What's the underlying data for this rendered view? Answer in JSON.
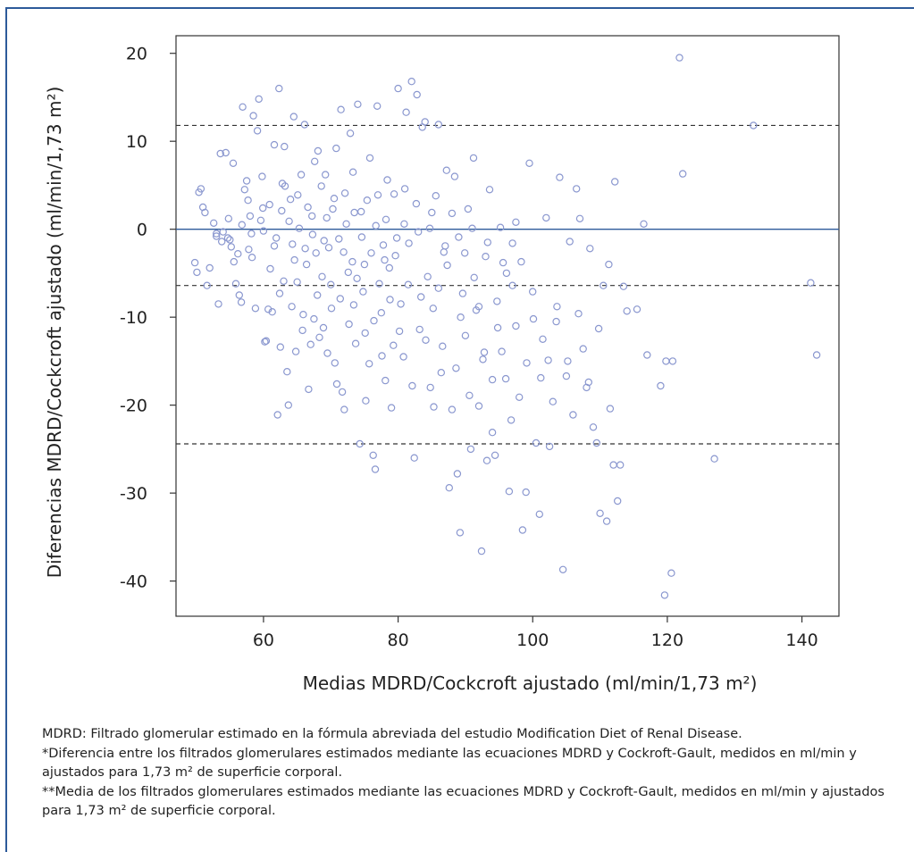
{
  "chart_data": {
    "type": "scatter",
    "title": "",
    "xlabel": "Medias MDRD/Cockcroft ajustado (ml/min/1,73 m²)",
    "ylabel": "Diferencias MDRD/Cockcroft ajustado (ml/min/1,73 m²)",
    "xlim": [
      47,
      145.5
    ],
    "ylim": [
      -44,
      22
    ],
    "xticks": [
      60,
      80,
      100,
      120,
      140
    ],
    "yticks": [
      20,
      10,
      0,
      -10,
      -20,
      -30,
      -40
    ],
    "xtick_labels": [
      "60",
      "80",
      "100",
      "120",
      "140"
    ],
    "ytick_labels": [
      "20",
      "10",
      "0",
      "-10",
      "-20",
      "-30",
      "-40"
    ],
    "reference_lines": [
      {
        "y": 0,
        "style": "solid",
        "color": "#2d5a9a"
      },
      {
        "y": 11.8,
        "style": "dashed",
        "color": "#333333"
      },
      {
        "y": -6.4,
        "style": "dashed",
        "color": "#333333"
      },
      {
        "y": -24.4,
        "style": "dashed",
        "color": "#333333"
      }
    ],
    "marker_color": "#8a97cf",
    "series": [
      {
        "points": [
          [
            49.8,
            -3.8
          ],
          [
            50.1,
            -4.9
          ],
          [
            50.4,
            4.2
          ],
          [
            50.7,
            4.6
          ],
          [
            51.0,
            2.5
          ],
          [
            51.3,
            1.9
          ],
          [
            51.6,
            -6.4
          ],
          [
            52.0,
            -4.4
          ],
          [
            52.6,
            0.7
          ],
          [
            53.0,
            -0.8
          ],
          [
            53.3,
            -8.5
          ],
          [
            53.6,
            8.6
          ],
          [
            53.8,
            -1.4
          ],
          [
            54.0,
            -0.3
          ],
          [
            54.4,
            8.7
          ],
          [
            54.7,
            -1.0
          ],
          [
            55.0,
            -1.2
          ],
          [
            55.2,
            -2.0
          ],
          [
            55.6,
            -3.7
          ],
          [
            55.9,
            -6.2
          ],
          [
            56.2,
            -2.8
          ],
          [
            56.4,
            -7.5
          ],
          [
            56.7,
            -8.3
          ],
          [
            56.9,
            13.9
          ],
          [
            57.2,
            4.5
          ],
          [
            57.5,
            5.5
          ],
          [
            57.7,
            3.3
          ],
          [
            58.0,
            1.5
          ],
          [
            58.2,
            -0.5
          ],
          [
            58.5,
            12.9
          ],
          [
            58.8,
            -9.0
          ],
          [
            59.1,
            11.2
          ],
          [
            59.3,
            14.8
          ],
          [
            59.6,
            1.0
          ],
          [
            59.9,
            2.4
          ],
          [
            60.2,
            -12.8
          ],
          [
            60.4,
            -12.7
          ],
          [
            60.7,
            -9.1
          ],
          [
            61.0,
            -4.5
          ],
          [
            61.3,
            -9.4
          ],
          [
            61.6,
            9.6
          ],
          [
            61.9,
            -1.0
          ],
          [
            62.1,
            -21.1
          ],
          [
            62.3,
            16.0
          ],
          [
            62.5,
            -13.4
          ],
          [
            62.7,
            2.1
          ],
          [
            63.0,
            -5.9
          ],
          [
            63.2,
            4.9
          ],
          [
            63.5,
            -16.2
          ],
          [
            63.7,
            -20.0
          ],
          [
            64.0,
            3.4
          ],
          [
            64.2,
            -8.8
          ],
          [
            64.5,
            12.8
          ],
          [
            64.8,
            -13.9
          ],
          [
            65.0,
            -6.0
          ],
          [
            65.3,
            0.1
          ],
          [
            65.6,
            6.2
          ],
          [
            65.9,
            -9.7
          ],
          [
            66.1,
            11.9
          ],
          [
            66.4,
            -4.0
          ],
          [
            66.7,
            -18.2
          ],
          [
            67.0,
            -13.1
          ],
          [
            67.2,
            1.5
          ],
          [
            67.5,
            -10.2
          ],
          [
            67.8,
            -2.7
          ],
          [
            68.0,
            -7.5
          ],
          [
            68.3,
            -12.3
          ],
          [
            68.6,
            4.9
          ],
          [
            68.9,
            -11.2
          ],
          [
            69.2,
            6.2
          ],
          [
            69.5,
            -14.1
          ],
          [
            69.7,
            -2.1
          ],
          [
            70.0,
            -6.3
          ],
          [
            70.3,
            2.3
          ],
          [
            70.6,
            -15.2
          ],
          [
            70.9,
            -17.6
          ],
          [
            71.2,
            -1.1
          ],
          [
            71.5,
            13.6
          ],
          [
            71.7,
            -18.5
          ],
          [
            72.0,
            -20.5
          ],
          [
            72.3,
            0.6
          ],
          [
            72.6,
            -4.9
          ],
          [
            72.9,
            10.9
          ],
          [
            73.2,
            -3.7
          ],
          [
            73.4,
            -8.6
          ],
          [
            73.7,
            -13.0
          ],
          [
            74.0,
            14.2
          ],
          [
            74.3,
            -24.4
          ],
          [
            74.6,
            -0.9
          ],
          [
            74.8,
            -7.1
          ],
          [
            75.1,
            -11.8
          ],
          [
            75.4,
            3.3
          ],
          [
            75.7,
            -15.3
          ],
          [
            76.0,
            -2.7
          ],
          [
            76.3,
            -25.7
          ],
          [
            76.6,
            -27.3
          ],
          [
            76.9,
            14.0
          ],
          [
            77.2,
            -6.2
          ],
          [
            77.5,
            -9.5
          ],
          [
            77.8,
            -1.8
          ],
          [
            78.1,
            -17.2
          ],
          [
            78.4,
            5.6
          ],
          [
            78.7,
            -4.4
          ],
          [
            79.0,
            -20.3
          ],
          [
            79.3,
            -13.2
          ],
          [
            79.6,
            -3.0
          ],
          [
            80.0,
            16.0
          ],
          [
            80.4,
            -8.5
          ],
          [
            80.8,
            -14.5
          ],
          [
            81.2,
            13.3
          ],
          [
            81.6,
            -1.6
          ],
          [
            82.0,
            16.8
          ],
          [
            82.4,
            -26.0
          ],
          [
            82.8,
            15.3
          ],
          [
            83.2,
            -11.4
          ],
          [
            83.6,
            11.6
          ],
          [
            84.0,
            12.2
          ],
          [
            84.4,
            -5.4
          ],
          [
            84.8,
            -18.0
          ],
          [
            85.2,
            -9.0
          ],
          [
            85.6,
            3.8
          ],
          [
            86.0,
            11.9
          ],
          [
            86.4,
            -16.3
          ],
          [
            86.8,
            -2.6
          ],
          [
            87.2,
            6.7
          ],
          [
            87.6,
            -29.4
          ],
          [
            88.0,
            -20.5
          ],
          [
            88.4,
            6.0
          ],
          [
            88.8,
            -27.8
          ],
          [
            89.2,
            -34.5
          ],
          [
            89.6,
            -7.3
          ],
          [
            90.0,
            -12.1
          ],
          [
            90.4,
            2.3
          ],
          [
            90.8,
            -25.0
          ],
          [
            91.2,
            8.1
          ],
          [
            91.6,
            -9.2
          ],
          [
            92.0,
            -20.1
          ],
          [
            92.4,
            -36.6
          ],
          [
            92.8,
            -14.0
          ],
          [
            93.2,
            -26.3
          ],
          [
            93.6,
            4.5
          ],
          [
            94.0,
            -17.1
          ],
          [
            94.4,
            -25.7
          ],
          [
            94.8,
            -11.2
          ],
          [
            95.2,
            0.2
          ],
          [
            95.6,
            -3.8
          ],
          [
            96.0,
            -17.0
          ],
          [
            96.5,
            -29.8
          ],
          [
            97.0,
            -6.4
          ],
          [
            97.5,
            0.8
          ],
          [
            98.0,
            -19.1
          ],
          [
            98.5,
            -34.2
          ],
          [
            99.0,
            -29.9
          ],
          [
            99.5,
            7.5
          ],
          [
            100.0,
            -7.1
          ],
          [
            100.5,
            -24.3
          ],
          [
            101.0,
            -32.4
          ],
          [
            101.5,
            -12.5
          ],
          [
            102.0,
            1.3
          ],
          [
            102.5,
            -24.7
          ],
          [
            103.0,
            -19.6
          ],
          [
            103.5,
            -10.5
          ],
          [
            104.0,
            5.9
          ],
          [
            104.5,
            -38.7
          ],
          [
            105.0,
            -16.7
          ],
          [
            105.5,
            -1.4
          ],
          [
            106.0,
            -21.1
          ],
          [
            106.5,
            4.6
          ],
          [
            107.0,
            1.2
          ],
          [
            107.5,
            -13.6
          ],
          [
            108.0,
            -18.0
          ],
          [
            108.5,
            -2.2
          ],
          [
            109.0,
            -22.5
          ],
          [
            109.5,
            -24.3
          ],
          [
            110.0,
            -32.3
          ],
          [
            110.5,
            -6.4
          ],
          [
            111.0,
            -33.2
          ],
          [
            111.5,
            -20.4
          ],
          [
            112.0,
            -26.8
          ],
          [
            112.2,
            5.4
          ],
          [
            112.6,
            -30.9
          ],
          [
            113.0,
            -26.8
          ],
          [
            113.5,
            -6.5
          ],
          [
            114.0,
            -9.3
          ],
          [
            115.5,
            -9.1
          ],
          [
            116.5,
            0.6
          ],
          [
            119.0,
            -17.8
          ],
          [
            119.6,
            -41.6
          ],
          [
            119.8,
            -15.0
          ],
          [
            120.6,
            -39.1
          ],
          [
            120.8,
            -15.0
          ],
          [
            121.8,
            19.5
          ],
          [
            122.3,
            6.3
          ],
          [
            127.0,
            -26.1
          ],
          [
            132.8,
            11.8
          ],
          [
            141.3,
            -6.1
          ],
          [
            142.2,
            -14.3
          ],
          [
            55.5,
            7.5
          ],
          [
            56.8,
            0.5
          ],
          [
            58.3,
            -3.2
          ],
          [
            59.8,
            6.0
          ],
          [
            60.9,
            2.8
          ],
          [
            61.6,
            -1.9
          ],
          [
            62.4,
            -7.3
          ],
          [
            63.1,
            9.4
          ],
          [
            63.8,
            0.9
          ],
          [
            64.6,
            -3.5
          ],
          [
            65.1,
            3.9
          ],
          [
            65.8,
            -11.5
          ],
          [
            66.6,
            2.5
          ],
          [
            67.3,
            -0.6
          ],
          [
            68.1,
            8.9
          ],
          [
            68.7,
            -5.4
          ],
          [
            69.4,
            1.3
          ],
          [
            70.1,
            -9.0
          ],
          [
            70.8,
            9.2
          ],
          [
            71.4,
            -7.9
          ],
          [
            72.1,
            4.1
          ],
          [
            72.7,
            -10.8
          ],
          [
            73.3,
            6.5
          ],
          [
            73.9,
            -5.6
          ],
          [
            74.5,
            2.0
          ],
          [
            75.2,
            -19.5
          ],
          [
            75.8,
            8.1
          ],
          [
            76.4,
            -10.4
          ],
          [
            77.0,
            3.9
          ],
          [
            77.6,
            -14.4
          ],
          [
            78.2,
            1.1
          ],
          [
            78.8,
            -8.0
          ],
          [
            79.4,
            4.0
          ],
          [
            80.2,
            -11.6
          ],
          [
            80.9,
            0.6
          ],
          [
            81.5,
            -6.3
          ],
          [
            82.1,
            -17.8
          ],
          [
            82.7,
            2.9
          ],
          [
            83.4,
            -7.7
          ],
          [
            84.1,
            -12.6
          ],
          [
            84.7,
            0.1
          ],
          [
            85.3,
            -20.2
          ],
          [
            86.0,
            -6.7
          ],
          [
            86.6,
            -13.3
          ],
          [
            87.3,
            -4.1
          ],
          [
            88.0,
            1.8
          ],
          [
            88.6,
            -15.8
          ],
          [
            89.3,
            -10.0
          ],
          [
            89.9,
            -2.7
          ],
          [
            90.6,
            -18.9
          ],
          [
            91.3,
            -5.5
          ],
          [
            92.0,
            -8.8
          ],
          [
            92.6,
            -14.8
          ],
          [
            93.3,
            -1.5
          ],
          [
            94.0,
            -23.1
          ],
          [
            94.7,
            -8.2
          ],
          [
            95.4,
            -13.9
          ],
          [
            96.1,
            -5.0
          ],
          [
            96.8,
            -21.7
          ],
          [
            97.5,
            -11.0
          ],
          [
            98.3,
            -3.7
          ],
          [
            99.1,
            -15.2
          ],
          [
            100.1,
            -10.2
          ],
          [
            101.2,
            -16.9
          ],
          [
            102.3,
            -14.9
          ],
          [
            103.6,
            -8.8
          ],
          [
            105.2,
            -15.0
          ],
          [
            106.8,
            -9.6
          ],
          [
            108.3,
            -17.4
          ],
          [
            109.8,
            -11.3
          ],
          [
            111.3,
            -4.0
          ],
          [
            117.0,
            -14.3
          ],
          [
            53.0,
            -0.5
          ],
          [
            54.8,
            1.2
          ],
          [
            57.8,
            -2.3
          ],
          [
            60.0,
            -0.2
          ],
          [
            62.8,
            5.2
          ],
          [
            64.3,
            -1.7
          ],
          [
            66.2,
            -2.2
          ],
          [
            67.6,
            7.7
          ],
          [
            69.0,
            -1.3
          ],
          [
            70.5,
            3.5
          ],
          [
            71.9,
            -2.6
          ],
          [
            73.5,
            1.9
          ],
          [
            75.0,
            -4.0
          ],
          [
            76.7,
            0.4
          ],
          [
            78.0,
            -3.5
          ],
          [
            79.8,
            -1.0
          ],
          [
            81.0,
            4.6
          ],
          [
            83.0,
            -0.3
          ],
          [
            85.0,
            1.9
          ],
          [
            87.0,
            -1.9
          ],
          [
            89.0,
            -0.9
          ],
          [
            91.0,
            0.1
          ],
          [
            93.0,
            -3.1
          ],
          [
            97.0,
            -1.6
          ]
        ]
      }
    ]
  },
  "notes": [
    "MDRD: Filtrado glomerular estimado en la fórmula abreviada del estudio Modification Diet of Renal Disease.",
    "*Diferencia entre los filtrados glomerulares estimados mediante las ecuaciones MDRD y Cockroft-Gault, medidos en ml/min y ajustados para 1,73 m² de superficie corporal.",
    "**Media de los filtrados glomerulares estimados mediante las ecuaciones MDRD y Cockroft-Gault, medidos en ml/min y ajustados para 1,73 m² de superficie corporal."
  ]
}
